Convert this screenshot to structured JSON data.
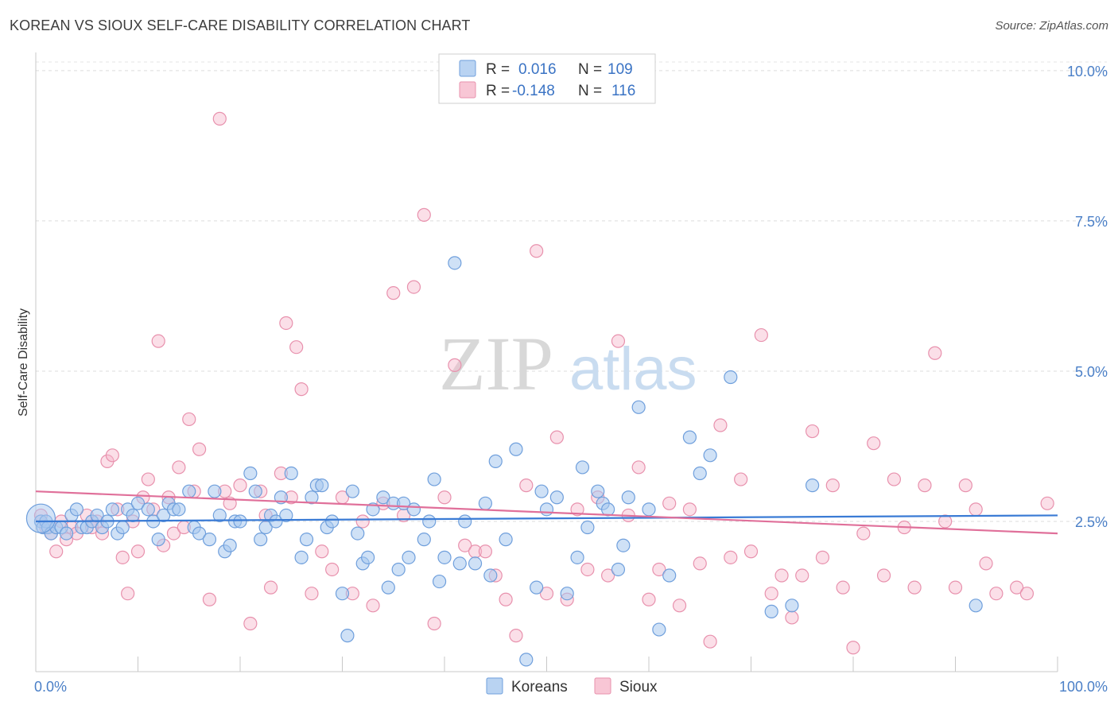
{
  "title": "KOREAN VS SIOUX SELF-CARE DISABILITY CORRELATION CHART",
  "source": "Source: ZipAtlas.com",
  "watermark": {
    "zip": "ZIP",
    "atlas": "atlas"
  },
  "colors": {
    "koreans_fill": "#a8c8ef",
    "koreans_stroke": "#6f9fdc",
    "koreans_line": "#3a7bd5",
    "sioux_fill": "#f6b8cb",
    "sioux_stroke": "#e891ad",
    "sioux_line": "#e0709a",
    "tick_text": "#4a7fc7"
  },
  "legend": {
    "rows": [
      {
        "r_label": "R =",
        "r_value": "0.016",
        "n_label": "N =",
        "n_value": "109"
      },
      {
        "r_label": "R =",
        "r_value": "-0.148",
        "n_label": "N =",
        "n_value": "116"
      }
    ]
  },
  "bottom_legend": [
    "Koreans",
    "Sioux"
  ],
  "chart_data": {
    "type": "scatter",
    "title": "KOREAN VS SIOUX SELF-CARE DISABILITY CORRELATION CHART",
    "xlabel": "",
    "ylabel": "Self-Care Disability",
    "xlim": [
      0,
      100
    ],
    "ylim": [
      0,
      10.25
    ],
    "x_tick_labels": [
      "0.0%",
      "100.0%"
    ],
    "y_ticks": [
      2.5,
      5.0,
      7.5,
      10.0
    ],
    "y_tick_labels": [
      "2.5%",
      "5.0%",
      "7.5%",
      "10.0%"
    ],
    "grid": "horizontal dashed",
    "legend_placement": "top-center",
    "series": [
      {
        "name": "Koreans",
        "R": 0.016,
        "N": 109,
        "trend": {
          "x": [
            0,
            100
          ],
          "y": [
            2.5,
            2.6
          ]
        },
        "points": [
          [
            0.5,
            2.5
          ],
          [
            0.7,
            2.4
          ],
          [
            1,
            2.5
          ],
          [
            1.2,
            2.4
          ],
          [
            1.5,
            2.3
          ],
          [
            2,
            2.4
          ],
          [
            2.5,
            2.4
          ],
          [
            3,
            2.3
          ],
          [
            3.5,
            2.6
          ],
          [
            4,
            2.7
          ],
          [
            4.5,
            2.4
          ],
          [
            5,
            2.4
          ],
          [
            5.5,
            2.5
          ],
          [
            6,
            2.6
          ],
          [
            6.5,
            2.4
          ],
          [
            7,
            2.5
          ],
          [
            7.5,
            2.7
          ],
          [
            8,
            2.3
          ],
          [
            8.5,
            2.4
          ],
          [
            9,
            2.7
          ],
          [
            9.5,
            2.6
          ],
          [
            10,
            2.8
          ],
          [
            11,
            2.7
          ],
          [
            11.5,
            2.5
          ],
          [
            12,
            2.2
          ],
          [
            12.5,
            2.6
          ],
          [
            13,
            2.8
          ],
          [
            13.5,
            2.7
          ],
          [
            14,
            2.7
          ],
          [
            15,
            3.0
          ],
          [
            15.5,
            2.4
          ],
          [
            16,
            2.3
          ],
          [
            17,
            2.2
          ],
          [
            17.5,
            3.0
          ],
          [
            18,
            2.6
          ],
          [
            18.5,
            2.0
          ],
          [
            19,
            2.1
          ],
          [
            19.5,
            2.5
          ],
          [
            20,
            2.5
          ],
          [
            21,
            3.3
          ],
          [
            21.5,
            3.0
          ],
          [
            22,
            2.2
          ],
          [
            22.5,
            2.4
          ],
          [
            23,
            2.6
          ],
          [
            23.5,
            2.5
          ],
          [
            24,
            2.9
          ],
          [
            24.5,
            2.6
          ],
          [
            25,
            3.3
          ],
          [
            26,
            1.9
          ],
          [
            26.5,
            2.2
          ],
          [
            27,
            2.9
          ],
          [
            27.5,
            3.1
          ],
          [
            28,
            3.1
          ],
          [
            28.5,
            2.4
          ],
          [
            29,
            2.5
          ],
          [
            30,
            1.3
          ],
          [
            30.5,
            0.6
          ],
          [
            31,
            3.0
          ],
          [
            31.5,
            2.3
          ],
          [
            32,
            1.8
          ],
          [
            32.5,
            1.9
          ],
          [
            33,
            2.7
          ],
          [
            34,
            2.9
          ],
          [
            34.5,
            1.4
          ],
          [
            35,
            2.8
          ],
          [
            35.5,
            1.7
          ],
          [
            36,
            2.8
          ],
          [
            36.5,
            1.9
          ],
          [
            37,
            2.7
          ],
          [
            38,
            2.2
          ],
          [
            38.5,
            2.5
          ],
          [
            39,
            3.2
          ],
          [
            39.5,
            1.5
          ],
          [
            40,
            1.9
          ],
          [
            41,
            6.8
          ],
          [
            41.5,
            1.8
          ],
          [
            42,
            2.5
          ],
          [
            43,
            1.8
          ],
          [
            44,
            2.8
          ],
          [
            44.5,
            1.6
          ],
          [
            45,
            3.5
          ],
          [
            46,
            2.2
          ],
          [
            47,
            3.7
          ],
          [
            48,
            0.2
          ],
          [
            49,
            1.4
          ],
          [
            49.5,
            3.0
          ],
          [
            50,
            2.7
          ],
          [
            51,
            2.9
          ],
          [
            52,
            1.3
          ],
          [
            53,
            1.9
          ],
          [
            53.5,
            3.4
          ],
          [
            54,
            2.4
          ],
          [
            55,
            3.0
          ],
          [
            55.5,
            2.8
          ],
          [
            56,
            2.7
          ],
          [
            57,
            1.7
          ],
          [
            57.5,
            2.1
          ],
          [
            58,
            2.9
          ],
          [
            59,
            4.4
          ],
          [
            60,
            2.7
          ],
          [
            61,
            0.7
          ],
          [
            62,
            1.6
          ],
          [
            64,
            3.9
          ],
          [
            65,
            3.3
          ],
          [
            66,
            3.6
          ],
          [
            68,
            4.9
          ],
          [
            72,
            1.0
          ],
          [
            74,
            1.1
          ],
          [
            76,
            3.1
          ],
          [
            92,
            1.1
          ]
        ]
      },
      {
        "name": "Sioux",
        "R": -0.148,
        "N": 116,
        "trend": {
          "x": [
            0,
            100
          ],
          "y": [
            3.0,
            2.3
          ]
        },
        "points": [
          [
            0.5,
            2.6
          ],
          [
            1,
            2.4
          ],
          [
            1.5,
            2.3
          ],
          [
            2,
            2.0
          ],
          [
            2.5,
            2.5
          ],
          [
            3,
            2.2
          ],
          [
            3.5,
            2.4
          ],
          [
            4,
            2.3
          ],
          [
            5,
            2.6
          ],
          [
            5.5,
            2.4
          ],
          [
            6,
            2.5
          ],
          [
            6.5,
            2.3
          ],
          [
            7,
            3.5
          ],
          [
            7.5,
            3.6
          ],
          [
            8,
            2.7
          ],
          [
            8.5,
            1.9
          ],
          [
            9,
            1.3
          ],
          [
            9.5,
            2.5
          ],
          [
            10,
            2.0
          ],
          [
            10.5,
            2.9
          ],
          [
            11,
            3.2
          ],
          [
            11.5,
            2.7
          ],
          [
            12,
            5.5
          ],
          [
            12.5,
            2.1
          ],
          [
            13,
            2.9
          ],
          [
            13.5,
            2.3
          ],
          [
            14,
            3.4
          ],
          [
            14.5,
            2.4
          ],
          [
            15,
            4.2
          ],
          [
            15.5,
            3.0
          ],
          [
            16,
            3.7
          ],
          [
            17,
            1.2
          ],
          [
            18,
            9.2
          ],
          [
            18.5,
            3.0
          ],
          [
            19,
            2.8
          ],
          [
            20,
            3.1
          ],
          [
            21,
            0.8
          ],
          [
            22,
            3.0
          ],
          [
            22.5,
            2.6
          ],
          [
            23,
            1.4
          ],
          [
            24,
            3.3
          ],
          [
            24.5,
            5.8
          ],
          [
            25,
            2.9
          ],
          [
            25.5,
            5.4
          ],
          [
            26,
            4.7
          ],
          [
            27,
            1.3
          ],
          [
            28,
            2.0
          ],
          [
            29,
            1.7
          ],
          [
            30,
            2.9
          ],
          [
            31,
            1.3
          ],
          [
            32,
            2.5
          ],
          [
            33,
            1.1
          ],
          [
            34,
            2.8
          ],
          [
            35,
            6.3
          ],
          [
            36,
            2.6
          ],
          [
            37,
            6.4
          ],
          [
            38,
            7.6
          ],
          [
            39,
            0.8
          ],
          [
            40,
            2.9
          ],
          [
            41,
            5.1
          ],
          [
            42,
            2.1
          ],
          [
            43,
            2.0
          ],
          [
            44,
            2.0
          ],
          [
            45,
            1.6
          ],
          [
            46,
            1.2
          ],
          [
            47,
            0.6
          ],
          [
            48,
            3.1
          ],
          [
            49,
            7.0
          ],
          [
            50,
            1.3
          ],
          [
            51,
            3.9
          ],
          [
            52,
            1.2
          ],
          [
            53,
            2.7
          ],
          [
            54,
            1.7
          ],
          [
            55,
            2.9
          ],
          [
            56,
            1.6
          ],
          [
            57,
            5.5
          ],
          [
            58,
            2.6
          ],
          [
            59,
            3.4
          ],
          [
            60,
            1.2
          ],
          [
            61,
            1.7
          ],
          [
            62,
            2.8
          ],
          [
            63,
            1.1
          ],
          [
            64,
            2.7
          ],
          [
            65,
            1.8
          ],
          [
            66,
            0.5
          ],
          [
            67,
            4.1
          ],
          [
            68,
            1.9
          ],
          [
            69,
            3.2
          ],
          [
            70,
            2.0
          ],
          [
            71,
            5.6
          ],
          [
            72,
            1.3
          ],
          [
            73,
            1.6
          ],
          [
            74,
            0.9
          ],
          [
            75,
            1.6
          ],
          [
            76,
            4.0
          ],
          [
            77,
            1.9
          ],
          [
            78,
            3.1
          ],
          [
            79,
            1.4
          ],
          [
            80,
            0.4
          ],
          [
            81,
            2.3
          ],
          [
            82,
            3.8
          ],
          [
            83,
            1.6
          ],
          [
            84,
            3.2
          ],
          [
            85,
            2.4
          ],
          [
            86,
            1.4
          ],
          [
            87,
            3.1
          ],
          [
            88,
            5.3
          ],
          [
            89,
            2.5
          ],
          [
            90,
            1.4
          ],
          [
            91,
            3.1
          ],
          [
            92,
            2.7
          ],
          [
            93,
            1.8
          ],
          [
            94,
            1.3
          ],
          [
            96,
            1.4
          ],
          [
            97,
            1.3
          ],
          [
            99,
            2.8
          ]
        ]
      }
    ]
  }
}
